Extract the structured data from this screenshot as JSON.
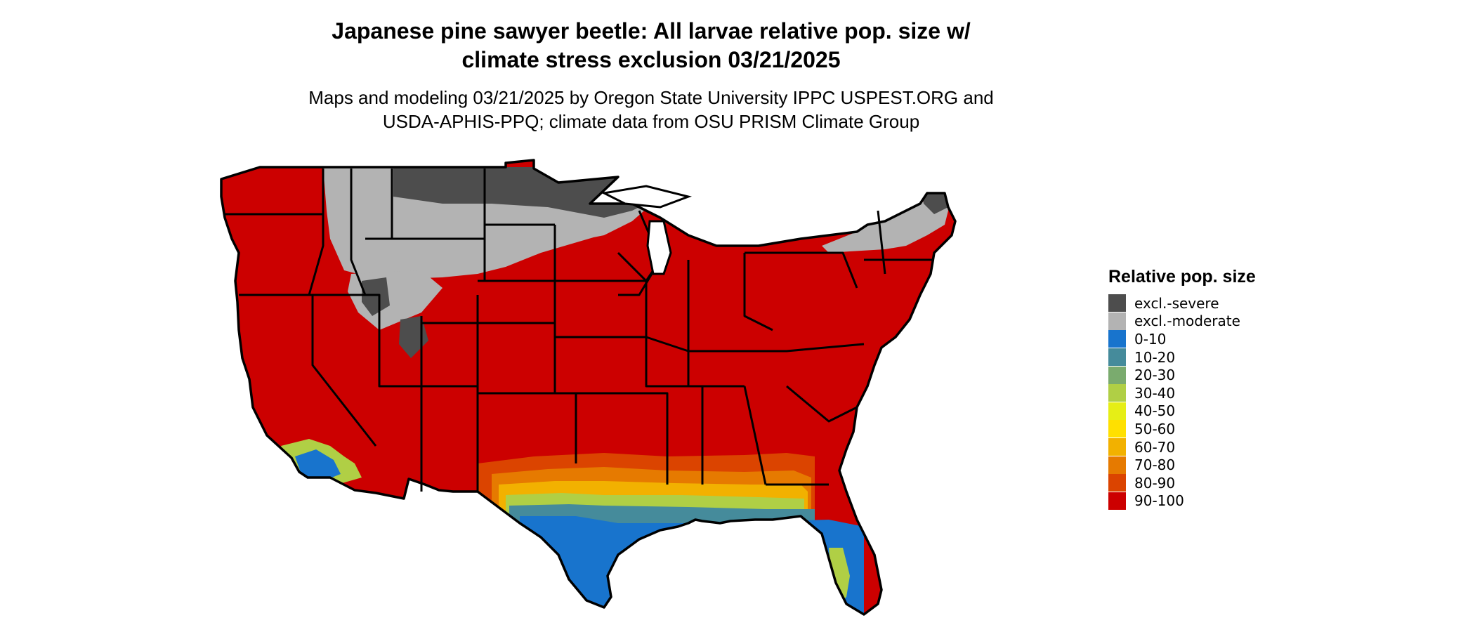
{
  "title": {
    "line1": "Japanese pine sawyer beetle: All larvae relative pop. size w/",
    "line2": "climate stress exclusion 03/21/2025"
  },
  "subtitle": {
    "line1": "Maps and modeling 03/21/2025 by Oregon State University IPPC USPEST.ORG and",
    "line2": "USDA-APHIS-PPQ; climate data from OSU PRISM Climate Group"
  },
  "legend": {
    "title": "Relative pop. size",
    "items": [
      {
        "label": "excl.-severe",
        "color": "#4d4d4d"
      },
      {
        "label": "excl.-moderate",
        "color": "#b3b3b3"
      },
      {
        "label": "0-10",
        "color": "#1874cd"
      },
      {
        "label": "10-20",
        "color": "#458b9b"
      },
      {
        "label": "20-30",
        "color": "#7aab6e"
      },
      {
        "label": "30-40",
        "color": "#b0cf45"
      },
      {
        "label": "40-50",
        "color": "#e6ee16"
      },
      {
        "label": "50-60",
        "color": "#ffe000"
      },
      {
        "label": "60-70",
        "color": "#f2b100"
      },
      {
        "label": "70-80",
        "color": "#e67a00"
      },
      {
        "label": "80-90",
        "color": "#db4400"
      },
      {
        "label": "90-100",
        "color": "#cc0000"
      }
    ]
  }
}
